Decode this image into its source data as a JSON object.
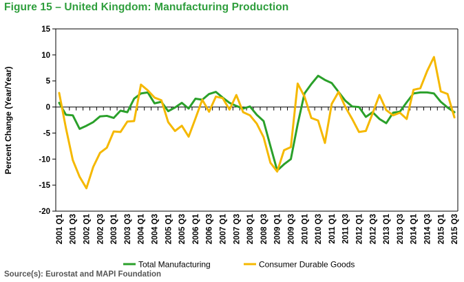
{
  "header": {
    "title": "Figure 15 – United Kingdom: Manufacturing Production"
  },
  "footer": {
    "source": "Source(s): Eurostat and MAPI Foundation"
  },
  "chart_data": {
    "type": "line",
    "ylabel": "Percent Change (Year/Year)",
    "ylim": [
      -20,
      15
    ],
    "yticks": [
      15,
      10,
      5,
      0,
      -5,
      -10,
      -15,
      -20
    ],
    "grid": false,
    "legend_position": "bottom",
    "x": [
      "2001 Q1",
      "2001 Q2",
      "2001 Q3",
      "2001 Q4",
      "2002 Q1",
      "2002 Q2",
      "2002 Q3",
      "2002 Q4",
      "2003 Q1",
      "2003 Q2",
      "2003 Q3",
      "2003 Q4",
      "2004 Q1",
      "2004 Q2",
      "2004 Q3",
      "2004 Q4",
      "2005 Q1",
      "2005 Q2",
      "2005 Q3",
      "2005 Q4",
      "2006 Q1",
      "2006 Q2",
      "2006 Q3",
      "2006 Q4",
      "2007 Q1",
      "2007 Q2",
      "2007 Q3",
      "2007 Q4",
      "2008 Q1",
      "2008 Q2",
      "2008 Q3",
      "2008 Q4",
      "2009 Q1",
      "2009 Q2",
      "2009 Q3",
      "2009 Q4",
      "2010 Q1",
      "2010 Q2",
      "2010 Q3",
      "2010 Q4",
      "2011 Q1",
      "2011 Q2",
      "2011 Q3",
      "2011 Q4",
      "2012 Q1",
      "2012 Q2",
      "2012 Q3",
      "2012 Q4",
      "2013 Q1",
      "2013 Q2",
      "2013 Q3",
      "2013 Q4",
      "2014 Q1",
      "2014 Q2",
      "2014 Q3",
      "2014 Q4",
      "2015 Q1",
      "2015 Q2",
      "2015 Q3"
    ],
    "xtick_labels": [
      "2001 Q1",
      "2001 Q3",
      "2002 Q1",
      "2002 Q3",
      "2003 Q1",
      "2003 Q3",
      "2004 Q1",
      "2004 Q3",
      "2005 Q1",
      "2005 Q3",
      "2006 Q1",
      "2006 Q3",
      "2007 Q1",
      "2007 Q3",
      "2008 Q1",
      "2008 Q3",
      "2009 Q1",
      "2009 Q3",
      "2010 Q1",
      "2010 Q3",
      "2011 Q1",
      "2011 Q3",
      "2012 Q1",
      "2012 Q3",
      "2013 Q1",
      "2013 Q3",
      "2014 Q1",
      "2014 Q3",
      "2015 Q1",
      "2015 Q3"
    ],
    "series": [
      {
        "name": "Total Manufacturing",
        "color": "#2aa02a",
        "values": [
          0.8,
          -1.5,
          -1.6,
          -4.2,
          -3.6,
          -2.9,
          -1.8,
          -1.7,
          -2.1,
          -0.7,
          -1.0,
          1.6,
          2.6,
          2.8,
          0.7,
          1.0,
          -0.8,
          -0.1,
          0.8,
          -0.3,
          1.6,
          1.4,
          2.5,
          2.9,
          1.8,
          0.8,
          0.2,
          -0.3,
          0.1,
          -1.5,
          -2.7,
          -7.5,
          -12.2,
          -11.0,
          -10.0,
          -3.3,
          2.6,
          4.4,
          6.0,
          5.2,
          4.6,
          2.9,
          1.2,
          0.1,
          0.0,
          -1.9,
          -1.0,
          -2.3,
          -3.1,
          -1.1,
          -0.9,
          0.9,
          2.6,
          2.8,
          2.8,
          2.6,
          1.0,
          -0.1,
          -1.0
        ]
      },
      {
        "name": "Consumer Durable Goods",
        "color": "#f5b800",
        "values": [
          2.7,
          -4.1,
          -10.2,
          -13.4,
          -15.6,
          -11.5,
          -8.8,
          -7.8,
          -4.7,
          -4.8,
          -2.8,
          -2.7,
          4.3,
          3.2,
          1.8,
          1.3,
          -2.9,
          -4.6,
          -3.6,
          -5.7,
          -2.2,
          1.4,
          -0.9,
          2.0,
          1.7,
          -0.5,
          2.3,
          -1.0,
          -1.6,
          -3.2,
          -5.8,
          -10.7,
          -12.4,
          -8.3,
          -7.7,
          4.5,
          2.0,
          -2.1,
          -2.6,
          -6.9,
          0.6,
          2.9,
          0.0,
          -2.3,
          -4.8,
          -4.6,
          -1.2,
          2.3,
          -0.6,
          -1.6,
          -1.1,
          -2.3,
          3.3,
          3.6,
          6.9,
          9.6,
          3.0,
          2.5,
          -2.0
        ]
      }
    ]
  }
}
